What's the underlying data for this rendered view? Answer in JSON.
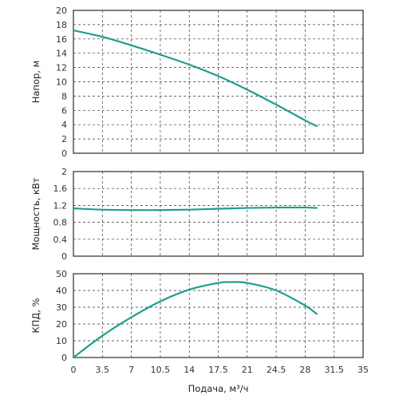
{
  "chart_data": {
    "type": "line",
    "xlabel": "Подача, м³/ч",
    "xlim": [
      0,
      35
    ],
    "xticks": [
      "0",
      "3.5",
      "7",
      "10.5",
      "14",
      "17.5",
      "21",
      "24.5",
      "28",
      "31.5",
      "35"
    ],
    "colors": {
      "curve": "#1f9e8e",
      "grid": "#3a3a3a"
    },
    "grid": true,
    "panels": [
      {
        "id": "head",
        "ylabel": "Напор, м",
        "ylim": [
          0,
          20
        ],
        "yticks": [
          "0",
          "2",
          "4",
          "6",
          "8",
          "10",
          "12",
          "14",
          "16",
          "18",
          "20"
        ],
        "series": [
          {
            "x": [
              0,
              3.5,
              7,
              10.5,
              14,
              17.5,
              21,
              24.5,
              28,
              29.4
            ],
            "y": [
              17.2,
              16.3,
              15.1,
              13.8,
              12.4,
              10.8,
              8.9,
              6.8,
              4.6,
              3.8
            ]
          }
        ]
      },
      {
        "id": "power",
        "ylabel": "Мощность, кВт",
        "ylim": [
          0,
          2
        ],
        "yticks": [
          "0",
          "0.4",
          "0.8",
          "1.2",
          "1.6",
          "2"
        ],
        "series": [
          {
            "x": [
              0,
              3.5,
              7,
              10.5,
              14,
              17.5,
              21,
              24.5,
              28,
              29.4
            ],
            "y": [
              1.13,
              1.1,
              1.09,
              1.09,
              1.1,
              1.12,
              1.14,
              1.15,
              1.15,
              1.14
            ]
          }
        ]
      },
      {
        "id": "efficiency",
        "ylabel": "КПД, %",
        "ylim": [
          0,
          50
        ],
        "yticks": [
          "0",
          "10",
          "20",
          "30",
          "40",
          "50"
        ],
        "series": [
          {
            "x": [
              0,
              3.5,
              7,
              10.5,
              14,
              17.5,
              19,
              21,
              24.5,
              28,
              29.4
            ],
            "y": [
              0,
              13,
              24,
              33.5,
              40.5,
              44.5,
              45,
              44.5,
              40,
              31,
              26
            ]
          }
        ]
      }
    ]
  }
}
